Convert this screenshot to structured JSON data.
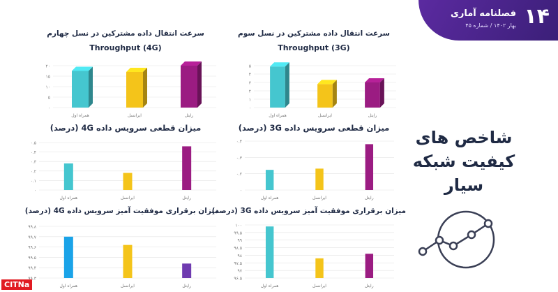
{
  "header": {
    "number": "۱۴",
    "publication": "فصلنامه آماری",
    "issue": "بهار ۱۴۰۲ / شماره ۴۵"
  },
  "main_title_lines": [
    "شاخص های",
    "کیفیت شبکه",
    "سیار"
  ],
  "watermark": "CITNa",
  "colors": {
    "hamrah_aval": "#45c6cf",
    "irancell": "#f4c41a",
    "rightel": "#9b1c82",
    "hamrah_aval_4g_success": "#1aa3e8",
    "rightel_4g_success": "#6f3bb0",
    "grid": "#e3e3e3",
    "axis_text": "#777777"
  },
  "chart_data": [
    {
      "id": "throughput_4g",
      "type": "bar",
      "title": "سرعت انتقال داده مشترکین در نسل چهارم",
      "subtitle": "Throughput (4G)",
      "categories": [
        "همراه اول",
        "ایرانسل",
        "رایتل"
      ],
      "values": [
        17.5,
        17,
        21
      ],
      "ylim": [
        0,
        20
      ],
      "yticks": [
        "۰",
        "۵",
        "۱۰",
        "۱۵",
        "۲۰"
      ],
      "style": "3d"
    },
    {
      "id": "throughput_3g",
      "type": "bar",
      "title": "سرعت انتقال داده مشترکین در نسل سوم",
      "subtitle": "Throughput (3G)",
      "categories": [
        "همراه اول",
        "ایرانسل",
        "رایتل"
      ],
      "values": [
        4.9,
        2.8,
        3.0
      ],
      "ylim": [
        0,
        5
      ],
      "yticks": [
        "۰",
        "۱",
        "۲",
        "۳",
        "۴",
        "۵"
      ],
      "style": "3d"
    },
    {
      "id": "drop_4g",
      "type": "bar",
      "title": "میزان قطعی سرویس داده 4G (درصد)",
      "categories": [
        "همراه اول",
        "ایرانسل",
        "رایتل"
      ],
      "values": [
        0.28,
        0.18,
        0.46
      ],
      "ylim": [
        0,
        0.5
      ],
      "yticks": [
        "۰",
        "۰.۱",
        "۰.۲",
        "۰.۳",
        "۰.۴",
        "۰.۵"
      ],
      "style": "flat"
    },
    {
      "id": "drop_3g",
      "type": "bar",
      "title": "میزان قطعی سرویس داده 3G (درصد)",
      "categories": [
        "همراه اول",
        "ایرانسل",
        "رایتل"
      ],
      "values": [
        0.165,
        0.175,
        0.375
      ],
      "ylim": [
        0,
        0.4
      ],
      "yticks": [
        "۰",
        "۰.۲",
        "۰.۳",
        "۰.۴"
      ],
      "style": "flat"
    },
    {
      "id": "success_4g",
      "type": "bar",
      "title": "میزان برقراری موفقیت آمیز سرویس داده 4G (درصد)",
      "categories": [
        "همراه اول",
        "ایرانسل",
        "رایتل"
      ],
      "values": [
        99.7,
        99.62,
        99.44
      ],
      "ylim": [
        99.3,
        99.8
      ],
      "yticks": [
        "۹۹.۳",
        "۹۹.۴",
        "۹۹.۵",
        "۹۹.۶",
        "۹۹.۷",
        "۹۹.۸"
      ],
      "style": "flat",
      "bar_colors": [
        "hamrah_aval_4g_success",
        "irancell",
        "rightel_4g_success"
      ]
    },
    {
      "id": "success_3g",
      "type": "bar",
      "title": "میزان برقراری موفقیت آمیز سرویس داده 3G (درصد)",
      "categories": [
        "همراه اول",
        "ایرانسل",
        "رایتل"
      ],
      "values": [
        99.9,
        97.8,
        98.1
      ],
      "ylim": [
        96.5,
        100
      ],
      "yticks": [
        "۹۶.۵",
        "۹۷",
        "۹۷.۵",
        "۹۸",
        "۹۸.۵",
        "۹۹",
        "۹۹.۵",
        "۱۰۰"
      ],
      "style": "flat"
    }
  ]
}
